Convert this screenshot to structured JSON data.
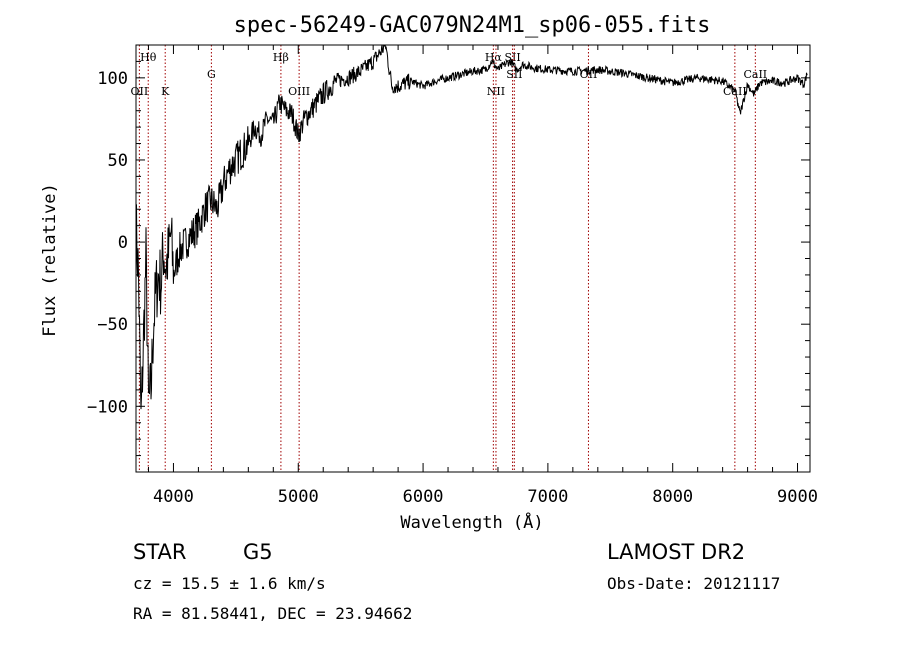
{
  "chart_data": {
    "type": "line",
    "title": "spec-56249-GAC079N24M1_sp06-055.fits",
    "xlabel": "Wavelength (Å)",
    "ylabel": "Flux (relative)",
    "xlim": [
      3700,
      9100
    ],
    "ylim": [
      -140,
      120
    ],
    "xticks": [
      4000,
      5000,
      6000,
      7000,
      8000,
      9000
    ],
    "yticks": [
      -100,
      -50,
      0,
      50,
      100
    ],
    "ytick_labels": [
      "−100",
      "−50",
      "0",
      "50",
      "100"
    ],
    "series": [
      {
        "name": "spectrum",
        "x": [
          3700,
          3720,
          3740,
          3760,
          3780,
          3800,
          3820,
          3840,
          3860,
          3880,
          3900,
          3920,
          3940,
          3960,
          3980,
          4000,
          4050,
          4100,
          4150,
          4200,
          4250,
          4300,
          4350,
          4400,
          4450,
          4500,
          4550,
          4600,
          4650,
          4700,
          4750,
          4800,
          4850,
          4900,
          4950,
          5000,
          5050,
          5100,
          5150,
          5200,
          5300,
          5400,
          5500,
          5600,
          5700,
          5750,
          5800,
          5900,
          6000,
          6100,
          6200,
          6300,
          6400,
          6500,
          6550,
          6600,
          6650,
          6700,
          6750,
          6800,
          6900,
          7000,
          7200,
          7400,
          7600,
          7800,
          8000,
          8200,
          8400,
          8500,
          8540,
          8600,
          8650,
          8700,
          8800,
          8900,
          9000,
          9050,
          9080
        ],
        "y": [
          10,
          -20,
          -110,
          -60,
          -10,
          -100,
          -90,
          -50,
          -30,
          -20,
          -25,
          -5,
          -15,
          -8,
          5,
          -20,
          -5,
          0,
          5,
          10,
          20,
          25,
          20,
          35,
          45,
          50,
          55,
          60,
          70,
          65,
          75,
          72,
          85,
          80,
          78,
          65,
          75,
          80,
          85,
          90,
          98,
          100,
          104,
          110,
          120,
          95,
          95,
          98,
          95,
          98,
          100,
          102,
          104,
          105,
          110,
          105,
          108,
          110,
          105,
          108,
          106,
          105,
          104,
          105,
          103,
          100,
          97,
          100,
          98,
          92,
          78,
          96,
          90,
          97,
          98,
          97,
          100,
          96,
          103
        ]
      }
    ],
    "lines": [
      {
        "label": "Hθ",
        "x": 3798,
        "pos": "top"
      },
      {
        "label": "OII",
        "x": 3727,
        "pos": "low"
      },
      {
        "label": "K",
        "x": 3934,
        "pos": "low"
      },
      {
        "label": "G",
        "x": 4304,
        "pos": "mid"
      },
      {
        "label": "Hβ",
        "x": 4861,
        "pos": "top"
      },
      {
        "label": "OIII",
        "x": 5007,
        "pos": "low"
      },
      {
        "label": "Hα",
        "x": 6563,
        "pos": "top"
      },
      {
        "label": "NII",
        "x": 6584,
        "pos": "low"
      },
      {
        "label": "SII",
        "x": 6717,
        "pos": "top"
      },
      {
        "label": "SII",
        "x": 6731,
        "pos": "mid"
      },
      {
        "label": "OII",
        "x": 7325,
        "pos": "mid"
      },
      {
        "label": "CaII",
        "x": 8498,
        "pos": "low"
      },
      {
        "label": "CaII",
        "x": 8662,
        "pos": "mid"
      }
    ]
  },
  "info": {
    "object_class": "STAR",
    "subclass": "G5",
    "survey": "LAMOST DR2",
    "redshift_line": "cz = 15.5 ± 1.6 km/s",
    "obs_date_line": "Obs-Date: 20121117",
    "coords_line": "RA =  81.58441, DEC =  23.94662"
  }
}
